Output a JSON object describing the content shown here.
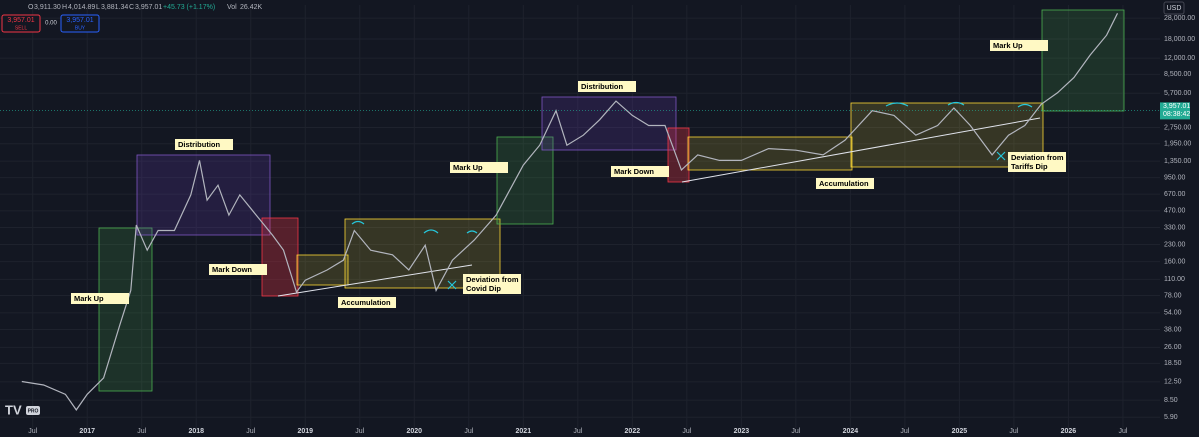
{
  "header": {
    "ohlc": [
      {
        "label": "O",
        "value": "3,911.30"
      },
      {
        "label": "H",
        "value": "4,014.89"
      },
      {
        "label": "L",
        "value": "3,881.34"
      },
      {
        "label": "C",
        "value": "3,957.01"
      }
    ],
    "change": "+45.73 (+1.17%)",
    "volume_label": "Vol",
    "volume": "26.42K",
    "sell_price": "3,957.01",
    "sell": "SELL",
    "spread": "0.00",
    "buy_price": "3,957.01",
    "buy": "BUY",
    "currency": "USD",
    "badge": "PRO"
  },
  "chart_data": {
    "type": "line",
    "log_scale": true,
    "grid": true,
    "color": "#b2b5be",
    "x": [
      2016.4,
      2016.6,
      2016.8,
      2016.9,
      2017.0,
      2017.15,
      2017.3,
      2017.4,
      2017.45,
      2017.55,
      2017.65,
      2017.8,
      2017.95,
      2018.03,
      2018.1,
      2018.2,
      2018.3,
      2018.4,
      2018.55,
      2018.7,
      2018.8,
      2018.92,
      2019.0,
      2019.2,
      2019.35,
      2019.45,
      2019.6,
      2019.8,
      2019.95,
      2020.1,
      2020.2,
      2020.35,
      2020.55,
      2020.75,
      2020.9,
      2021.0,
      2021.15,
      2021.3,
      2021.4,
      2021.55,
      2021.7,
      2021.85,
      2022.0,
      2022.15,
      2022.3,
      2022.45,
      2022.6,
      2022.8,
      2023.0,
      2023.25,
      2023.5,
      2023.75,
      2023.95,
      2024.2,
      2024.4,
      2024.6,
      2024.8,
      2024.95,
      2025.1,
      2025.3,
      2025.45,
      2025.6,
      2025.75,
      2025.9,
      2026.05,
      2026.2,
      2026.35,
      2026.45
    ],
    "series": [
      {
        "name": "Price",
        "values": [
          12.6,
          11.7,
          9.6,
          6.9,
          9.6,
          13.6,
          42,
          87,
          348,
          204,
          310,
          310,
          660,
          1370,
          590,
          810,
          430,
          660,
          430,
          280,
          204,
          84,
          108,
          134,
          165,
          310,
          204,
          185,
          134,
          227,
          87,
          165,
          253,
          430,
          810,
          1240,
          1890,
          3930,
          1890,
          2340,
          3240,
          4820,
          3560,
          2870,
          2870,
          1120,
          1540,
          1370,
          1370,
          1760,
          1700,
          1540,
          2100,
          3930,
          3560,
          2340,
          2870,
          4160,
          2870,
          1540,
          2340,
          2870,
          4500,
          5750,
          7930,
          12800,
          19500,
          31000
        ]
      }
    ],
    "last_price": 3957.01,
    "last_price_label": "3,957.01",
    "countdown": "08:38:42",
    "ylim": [
      4.7,
      37000
    ],
    "yticks": [
      {
        "value": 28000,
        "label": "28,000.00"
      },
      {
        "value": 18000,
        "label": "18,000.00"
      },
      {
        "value": 12000,
        "label": "12,000.00"
      },
      {
        "value": 8500,
        "label": "8,500.00"
      },
      {
        "value": 5700,
        "label": "5,700.00"
      },
      {
        "value": 2750,
        "label": "2,750.00"
      },
      {
        "value": 1950,
        "label": "1,950.00"
      },
      {
        "value": 1350,
        "label": "1,350.00"
      },
      {
        "value": 950,
        "label": "950.00"
      },
      {
        "value": 670,
        "label": "670.00"
      },
      {
        "value": 470,
        "label": "470.00"
      },
      {
        "value": 330,
        "label": "330.00"
      },
      {
        "value": 230,
        "label": "230.00"
      },
      {
        "value": 160,
        "label": "160.00"
      },
      {
        "value": 110,
        "label": "110.00"
      },
      {
        "value": 78,
        "label": "78.00"
      },
      {
        "value": 54,
        "label": "54.00"
      },
      {
        "value": 38,
        "label": "38.00"
      },
      {
        "value": 26,
        "label": "26.00"
      },
      {
        "value": 18.5,
        "label": "18.50"
      },
      {
        "value": 12.5,
        "label": "12.50"
      },
      {
        "value": 8.5,
        "label": "8.50"
      },
      {
        "value": 5.9,
        "label": "5.90"
      }
    ],
    "xlim": [
      2016.2,
      2026.84
    ],
    "xticks": [
      {
        "value": 2016.5,
        "label": "Jul"
      },
      2017,
      {
        "value": 2017.5,
        "label": "Jul"
      },
      2018,
      {
        "value": 2018.5,
        "label": "Jul"
      },
      2019,
      {
        "value": 2019.5,
        "label": "Jul"
      },
      2020,
      {
        "value": 2020.5,
        "label": "Jul"
      },
      2021,
      {
        "value": 2021.5,
        "label": "Jul"
      },
      2022,
      {
        "value": 2022.5,
        "label": "Jul"
      },
      2023,
      {
        "value": 2023.5,
        "label": "Jul"
      },
      2024,
      {
        "value": 2024.5,
        "label": "Jul"
      },
      2025,
      {
        "value": 2025.5,
        "label": "Jul"
      },
      2026,
      {
        "value": 2026.5,
        "label": "Jul"
      }
    ],
    "annotations": [
      [
        "Mark Up"
      ],
      [
        "Distribution"
      ],
      [
        "Mark Down"
      ],
      [
        "Accumulation"
      ],
      [
        "Deviation from",
        "Covid Dip"
      ],
      [
        "Mark Up"
      ],
      [
        "Distribution"
      ],
      [
        "Mark Down"
      ],
      [
        "Accumulation"
      ],
      [
        "Deviation from",
        "Tariffs Dip"
      ],
      [
        "Mark Up"
      ]
    ]
  }
}
